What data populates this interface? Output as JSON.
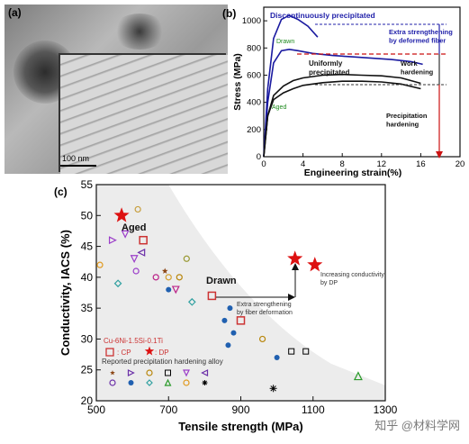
{
  "panel_a": {
    "label": "(a)",
    "scale_bar": "100 nm"
  },
  "panel_b": {
    "label": "(b)",
    "annotations": {
      "discontinuous": "Discontinuously precipitated",
      "drawn": "Drawn",
      "uniformly": "Uniformly\nprecipitated",
      "aged": "Aged",
      "extra_fiber": "Extra strengthening\nby deformed fiber",
      "work_hardening": "Work\nhardening",
      "precipitation_hardening": "Precipitation\nhardening"
    },
    "colors": {
      "curve": "#1a1aa0",
      "annotation": "#2222aa",
      "arrow": "#cc1111",
      "green_label": "#1f8a1f"
    }
  },
  "panel_c": {
    "label": "(c)",
    "annotations": {
      "aged": "Aged",
      "drawn": "Drawn",
      "increasing": "Increasing conductivity\nby DP",
      "extra": "Extra strengthening\nby fiber deformation",
      "alloy": "Cu-6Ni-1.5Si-0.1Ti",
      "legend_cp": ": CP",
      "legend_dp": ": DP",
      "reported": "Reported precipitation hardening alloy"
    },
    "colors": {
      "alloy": "#cc3333",
      "star": "#dd1111",
      "region": "#ececec"
    }
  },
  "chart_data": [
    {
      "type": "line",
      "xlabel": "Engineering strain(%)",
      "ylabel": "Stress (MPa)",
      "xlim": [
        0,
        20
      ],
      "ylim": [
        0,
        1100
      ],
      "xticks": [
        0,
        4,
        8,
        12,
        16,
        20
      ],
      "yticks": [
        0,
        200,
        400,
        600,
        800,
        1000
      ],
      "series": [
        {
          "x": [
            0,
            0.4,
            1,
            1.8,
            2.6,
            3.5,
            4.5,
            5.5
          ],
          "y": [
            0,
            500,
            870,
            1010,
            1040,
            1010,
            960,
            880
          ]
        },
        {
          "x": [
            0,
            0.4,
            1,
            1.8,
            2.6,
            3.5,
            5,
            7,
            9,
            11,
            13,
            15,
            16.2
          ],
          "y": [
            0,
            400,
            690,
            780,
            790,
            780,
            760,
            745,
            735,
            725,
            715,
            700,
            680
          ]
        },
        {
          "x": [
            0,
            0.4,
            1,
            2,
            3,
            4,
            6,
            8,
            10,
            12,
            14,
            16
          ],
          "y": [
            0,
            300,
            450,
            520,
            560,
            580,
            600,
            605,
            600,
            595,
            580,
            540
          ]
        },
        {
          "x": [
            0,
            0.4,
            1,
            2,
            3,
            4,
            6,
            8,
            10,
            12,
            14,
            16
          ],
          "y": [
            0,
            300,
            420,
            470,
            500,
            525,
            545,
            555,
            555,
            550,
            535,
            500
          ]
        }
      ]
    },
    {
      "type": "scatter",
      "xlabel": "Tensile strength (MPa)",
      "ylabel": "Conductivity, IACS (%)",
      "xlim": [
        500,
        1300
      ],
      "ylim": [
        20,
        55
      ],
      "xticks": [
        500,
        700,
        900,
        1100,
        1300
      ],
      "yticks": [
        20,
        25,
        30,
        35,
        40,
        45,
        50,
        55
      ],
      "points": [
        {
          "x": 570,
          "y": 50,
          "m": "star",
          "c": "#dd1111",
          "s": 9
        },
        {
          "x": 1050,
          "y": 43,
          "m": "star",
          "c": "#dd1111",
          "s": 9
        },
        {
          "x": 1105,
          "y": 42,
          "m": "star",
          "c": "#dd1111",
          "s": 9
        },
        {
          "x": 630,
          "y": 46,
          "m": "square",
          "c": "#cc3333",
          "s": 4
        },
        {
          "x": 820,
          "y": 37,
          "m": "square",
          "c": "#cc3333",
          "s": 4
        },
        {
          "x": 900,
          "y": 33,
          "m": "square",
          "c": "#cc3333",
          "s": 4
        },
        {
          "x": 580,
          "y": 47,
          "m": "tri-down",
          "c": "#9b3dc9",
          "s": 3.5
        },
        {
          "x": 545,
          "y": 46,
          "m": "tri-right",
          "c": "#9b3dc9",
          "s": 3.5
        },
        {
          "x": 625,
          "y": 44,
          "m": "tri-left",
          "c": "#6b2fa8",
          "s": 3.5
        },
        {
          "x": 605,
          "y": 43,
          "m": "tri-down",
          "c": "#9b3dc9",
          "s": 3.5
        },
        {
          "x": 615,
          "y": 51,
          "m": "circle",
          "c": "#c8a040",
          "s": 3
        },
        {
          "x": 510,
          "y": 42,
          "m": "circle",
          "c": "#e09a20",
          "s": 3
        },
        {
          "x": 560,
          "y": 39,
          "m": "diamond",
          "c": "#30a0a0",
          "s": 3.5
        },
        {
          "x": 610,
          "y": 41,
          "m": "circle",
          "c": "#9b3dc9",
          "s": 3
        },
        {
          "x": 665,
          "y": 40,
          "m": "circle",
          "c": "#bb2288",
          "s": 3
        },
        {
          "x": 690,
          "y": 41,
          "m": "star",
          "c": "#8b4513",
          "s": 3.5
        },
        {
          "x": 700,
          "y": 40,
          "m": "circle",
          "c": "#d4a030",
          "s": 3
        },
        {
          "x": 730,
          "y": 40,
          "m": "circle",
          "c": "#b8860b",
          "s": 3
        },
        {
          "x": 750,
          "y": 43,
          "m": "circle",
          "c": "#999933",
          "s": 3
        },
        {
          "x": 720,
          "y": 38,
          "m": "tri-down",
          "c": "#bb2288",
          "s": 3.5
        },
        {
          "x": 700,
          "y": 38,
          "m": "dot",
          "c": "#2060b0",
          "s": 3
        },
        {
          "x": 765,
          "y": 36,
          "m": "diamond",
          "c": "#30a0a0",
          "s": 3.5
        },
        {
          "x": 870,
          "y": 35,
          "m": "dot",
          "c": "#2060b0",
          "s": 3
        },
        {
          "x": 855,
          "y": 33,
          "m": "dot",
          "c": "#2060b0",
          "s": 3
        },
        {
          "x": 880,
          "y": 31,
          "m": "dot",
          "c": "#2060b0",
          "s": 3
        },
        {
          "x": 865,
          "y": 29,
          "m": "dot",
          "c": "#2060b0",
          "s": 3
        },
        {
          "x": 960,
          "y": 30,
          "m": "circle",
          "c": "#b8860b",
          "s": 3
        },
        {
          "x": 1000,
          "y": 27,
          "m": "dot",
          "c": "#2060b0",
          "s": 3
        },
        {
          "x": 1040,
          "y": 28,
          "m": "square-open",
          "c": "#000000",
          "s": 3
        },
        {
          "x": 1080,
          "y": 28,
          "m": "square-open",
          "c": "#000000",
          "s": 3
        },
        {
          "x": 990,
          "y": 22,
          "m": "asterisk",
          "c": "#000000",
          "s": 4
        },
        {
          "x": 1225,
          "y": 24,
          "m": "tri-up",
          "c": "#2a9a2a",
          "s": 4
        }
      ]
    }
  ]
}
